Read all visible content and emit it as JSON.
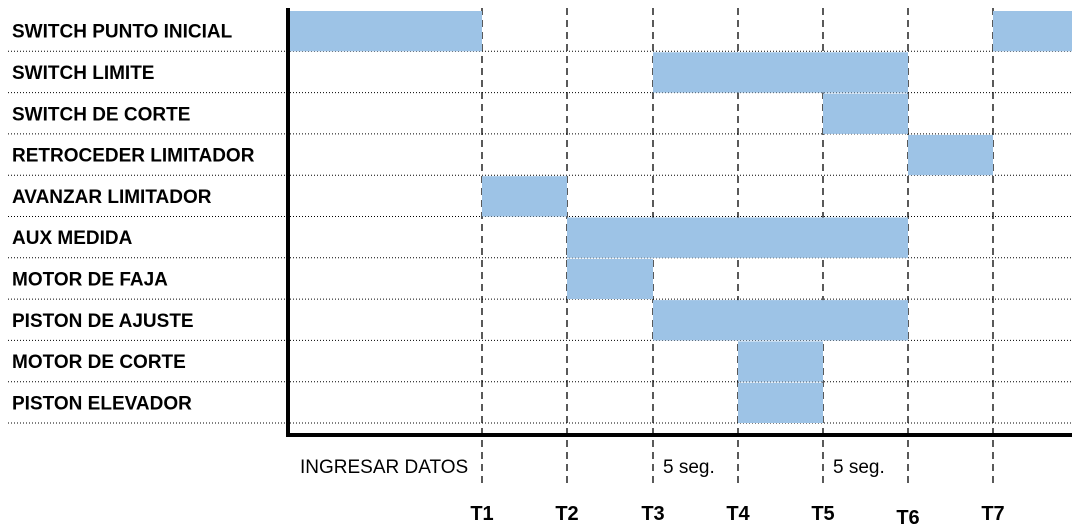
{
  "signals": [
    {
      "label": "SWITCH PUNTO INICIAL",
      "active": [
        [
          "T0",
          "T1"
        ],
        [
          "T7",
          "END"
        ]
      ]
    },
    {
      "label": "SWITCH LIMITE",
      "active": [
        [
          "T3",
          "T6"
        ]
      ]
    },
    {
      "label": "SWITCH DE CORTE",
      "active": [
        [
          "T5",
          "T6"
        ]
      ]
    },
    {
      "label": "RETROCEDER LIMITADOR",
      "active": [
        [
          "T6",
          "T7"
        ]
      ]
    },
    {
      "label": "AVANZAR LIMITADOR",
      "active": [
        [
          "T1",
          "T2"
        ]
      ]
    },
    {
      "label": "AUX MEDIDA",
      "active": [
        [
          "T2",
          "T6"
        ]
      ]
    },
    {
      "label": "MOTOR DE FAJA",
      "active": [
        [
          "T2",
          "T3"
        ]
      ]
    },
    {
      "label": "PISTON DE AJUSTE",
      "active": [
        [
          "T3",
          "T6"
        ]
      ]
    },
    {
      "label": "MOTOR DE CORTE",
      "active": [
        [
          "T4",
          "T5"
        ]
      ]
    },
    {
      "label": "PISTON ELEVADOR",
      "active": [
        [
          "T4",
          "T5"
        ]
      ]
    }
  ],
  "time_markers": [
    "T1",
    "T2",
    "T3",
    "T4",
    "T5",
    "T6",
    "T7"
  ],
  "interval_notes": [
    {
      "text": "INGRESAR DATOS",
      "between": [
        "T0",
        "T1"
      ]
    },
    {
      "text": "5 seg.",
      "between": [
        "T3",
        "T4"
      ]
    },
    {
      "text": "5 seg.",
      "between": [
        "T5",
        "T6"
      ]
    }
  ],
  "colors": {
    "active_fill": "#9dc3e6",
    "axis": "#000000",
    "gridline": "#000000"
  }
}
